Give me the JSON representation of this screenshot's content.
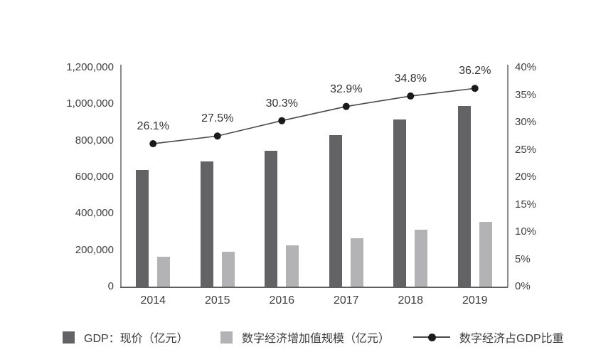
{
  "chart_data": {
    "type": "bar",
    "combo": true,
    "title": "",
    "categories": [
      "2014",
      "2015",
      "2016",
      "2017",
      "2018",
      "2019"
    ],
    "series": [
      {
        "name": "GDP：现价（亿元）",
        "type": "bar",
        "axis": "left",
        "color": "#636366",
        "values": [
          640000,
          685000,
          745000,
          830000,
          915000,
          990000
        ]
      },
      {
        "name": "数字经济增加值规模（亿元）",
        "type": "bar",
        "axis": "left",
        "color": "#b3b3b6",
        "values": [
          165000,
          190000,
          225000,
          265000,
          310000,
          355000
        ]
      },
      {
        "name": "数字经济占GDP比重",
        "type": "line",
        "axis": "right",
        "color": "#4a4a4c",
        "marker_color": "#1a1a1a",
        "values": [
          26.1,
          27.5,
          30.3,
          32.9,
          34.8,
          36.2
        ],
        "point_labels": [
          "26.1%",
          "27.5%",
          "30.3%",
          "32.9%",
          "34.8%",
          "36.2%"
        ]
      }
    ],
    "left_axis": {
      "min": 0,
      "max": 1200000,
      "step": 200000,
      "tick_labels": [
        "0",
        "200,000",
        "400,000",
        "600,000",
        "800,000",
        "1,000,000",
        "1,200,000"
      ]
    },
    "right_axis": {
      "min": 0,
      "max": 40,
      "step": 5,
      "tick_labels": [
        "0%",
        "5%",
        "10%",
        "15%",
        "20%",
        "25%",
        "30%",
        "35%",
        "40%"
      ]
    },
    "grid": false,
    "legend_position": "bottom",
    "axis_color": "#8a8a8a",
    "text_color": "#3f3f41"
  }
}
